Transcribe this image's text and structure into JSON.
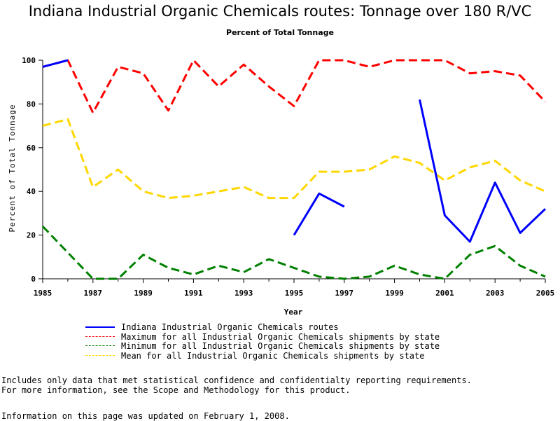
{
  "header": {
    "title": "Indiana Industrial Organic Chemicals routes: Tonnage over 180 R/VC",
    "subtitle": "Percent of Total Tonnage"
  },
  "chart_data": {
    "type": "line",
    "xlabel": "Year",
    "ylabel": "Percent of Total Tonnage",
    "xlim": [
      1985,
      2005
    ],
    "ylim": [
      0,
      100
    ],
    "x_ticks": [
      1985,
      1987,
      1989,
      1991,
      1993,
      1995,
      1997,
      1999,
      2001,
      2003,
      2005
    ],
    "y_ticks": [
      0,
      20,
      40,
      60,
      80,
      100
    ],
    "grid": false,
    "legend_position": "bottom",
    "x": [
      1985,
      1986,
      1987,
      1988,
      1989,
      1990,
      1991,
      1992,
      1993,
      1994,
      1995,
      1996,
      1997,
      1998,
      1999,
      2000,
      2001,
      2002,
      2003,
      2004,
      2005
    ],
    "series": [
      {
        "name": "Indiana Industrial Organic Chemicals routes",
        "color": "#0000ff",
        "style": "solid",
        "values": [
          97,
          100,
          null,
          null,
          null,
          null,
          null,
          null,
          null,
          null,
          20,
          39,
          33,
          null,
          null,
          82,
          29,
          17,
          44,
          21,
          32
        ]
      },
      {
        "name": "Maximum for all Industrial Organic Chemicals shipments by state",
        "color": "#ff0000",
        "style": "dashed",
        "values": [
          97,
          100,
          76,
          97,
          94,
          77,
          100,
          88,
          98,
          88,
          79,
          100,
          100,
          97,
          100,
          100,
          100,
          94,
          95,
          93,
          81
        ]
      },
      {
        "name": "Minimum for all Industrial Organic Chemicals shipments by state",
        "color": "#008000",
        "style": "dashed",
        "values": [
          24,
          12,
          0,
          0,
          11,
          5,
          2,
          6,
          3,
          9,
          5,
          1,
          0,
          1,
          6,
          2,
          0,
          11,
          15,
          6,
          1
        ]
      },
      {
        "name": "Mean for all Industrial Organic Chemicals shipments by state",
        "color": "#ffd700",
        "style": "dashed",
        "values": [
          70,
          73,
          42,
          50,
          40,
          37,
          38,
          40,
          42,
          37,
          37,
          49,
          49,
          50,
          56,
          53,
          45,
          51,
          54,
          45,
          40
        ]
      }
    ]
  },
  "notes": {
    "line1": "Includes only data that met statistical confidence and confidentialty reporting requirements.",
    "line2": "For more information, see the Scope and Methodology for this product."
  },
  "footer": {
    "updated": "Information on this page was updated on February 1, 2008."
  }
}
